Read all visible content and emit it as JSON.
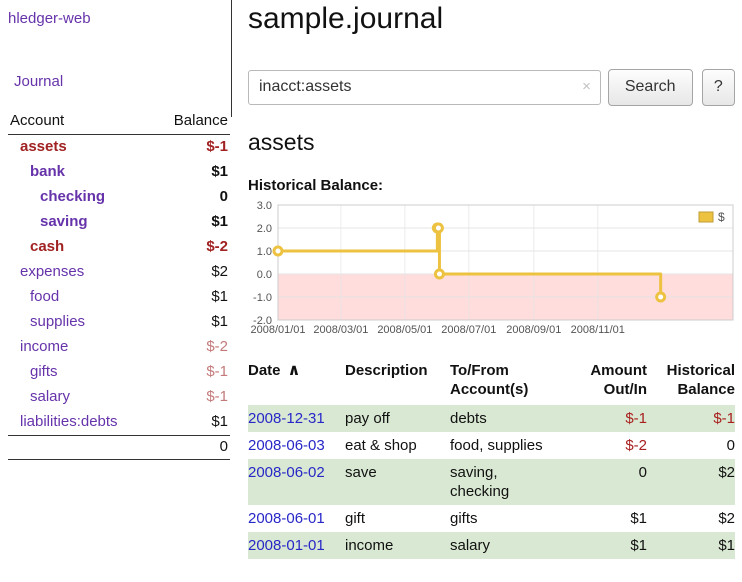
{
  "app": {
    "title": "hledger-web"
  },
  "sidebar": {
    "journal_link": "Journal",
    "table_headers": {
      "account": "Account",
      "balance": "Balance"
    },
    "accounts": [
      {
        "name": "assets",
        "indent": 1,
        "balance": "$-1",
        "in_query": true,
        "negative": "strong"
      },
      {
        "name": "bank",
        "indent": 2,
        "balance": "$1",
        "in_query": true
      },
      {
        "name": "checking",
        "indent": 3,
        "balance": "0",
        "in_query": true
      },
      {
        "name": "saving",
        "indent": 3,
        "balance": "$1",
        "in_query": true
      },
      {
        "name": "cash",
        "indent": 2,
        "balance": "$-2",
        "in_query": true,
        "negative": "strong"
      },
      {
        "name": "expenses",
        "indent": 1,
        "balance": "$2"
      },
      {
        "name": "food",
        "indent": 2,
        "balance": "$1"
      },
      {
        "name": "supplies",
        "indent": 2,
        "balance": "$1"
      },
      {
        "name": "income",
        "indent": 1,
        "balance": "$-2",
        "negative": "soft"
      },
      {
        "name": "gifts",
        "indent": 2,
        "balance": "$-1",
        "negative": "soft"
      },
      {
        "name": "salary",
        "indent": 2,
        "balance": "$-1",
        "negative": "soft"
      },
      {
        "name": "liabilities:debts",
        "indent": 1,
        "balance": "$1"
      }
    ],
    "total": "0"
  },
  "main": {
    "title": "sample.journal",
    "search": {
      "value": "inacct:assets",
      "clear_icon": "×",
      "button_label": "Search",
      "help_label": "?"
    },
    "account_heading": "assets",
    "chart_label": "Historical Balance:"
  },
  "chart_data": {
    "type": "line",
    "title": "Historical Balance of assets",
    "series": [
      {
        "name": "$",
        "step": true,
        "points": [
          [
            "2008-01-01",
            1
          ],
          [
            "2008-06-01",
            2
          ],
          [
            "2008-06-02",
            2
          ],
          [
            "2008-06-03",
            0
          ],
          [
            "2008-12-31",
            -1
          ]
        ]
      }
    ],
    "x_ticks": [
      "2008/01/01",
      "2008/03/01",
      "2008/05/01",
      "2008/07/01",
      "2008/09/01",
      "2008/11/01"
    ],
    "y_ticks": [
      "3.0",
      "2.0",
      "1.0",
      "0.0",
      "-1.0",
      "-2.0"
    ],
    "ylim": [
      -2,
      3
    ],
    "xlim": [
      "2008-01-01",
      "2009-03-10"
    ],
    "legend": {
      "label": "$",
      "position": "top-right"
    },
    "colors": {
      "line": "#edc240",
      "line_border": "#bf9d33",
      "negative_region": "#ffdddd",
      "grid": "#e4e4e4",
      "tick_text": "#545454"
    }
  },
  "register": {
    "headers": {
      "date": "Date",
      "sort_icon": "∧",
      "description": "Description",
      "accounts": "To/From Account(s)",
      "amount": "Amount Out/In",
      "balance": "Historical Balance"
    },
    "rows": [
      {
        "date": "2008-12-31",
        "description": "pay off",
        "accounts": "debts",
        "amount": "$-1",
        "balance": "$-1"
      },
      {
        "date": "2008-06-03",
        "description": "eat & shop",
        "accounts": "food, supplies",
        "amount": "$-2",
        "balance": "0"
      },
      {
        "date": "2008-06-02",
        "description": "save",
        "accounts": "saving, checking",
        "amount": "0",
        "balance": "$2"
      },
      {
        "date": "2008-06-01",
        "description": "gift",
        "accounts": "gifts",
        "amount": "$1",
        "balance": "$2"
      },
      {
        "date": "2008-01-01",
        "description": "income",
        "accounts": "salary",
        "amount": "$1",
        "balance": "$1"
      }
    ]
  }
}
